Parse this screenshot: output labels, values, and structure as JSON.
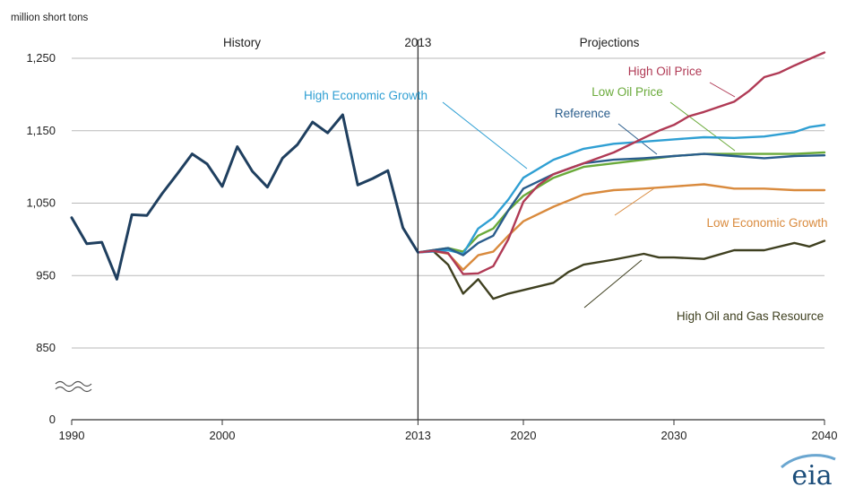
{
  "chart_data": {
    "type": "line",
    "ylabel": "million short tons",
    "yticks": [
      {
        "value": 0,
        "label": "0"
      },
      {
        "value": 850,
        "label": "850"
      },
      {
        "value": 950,
        "label": "950"
      },
      {
        "value": 1050,
        "label": "1,050"
      },
      {
        "value": 1150,
        "label": "1,150"
      },
      {
        "value": 1250,
        "label": "1,250"
      }
    ],
    "xticks": [
      {
        "value": 1990,
        "label": "1990"
      },
      {
        "value": 2000,
        "label": "2000"
      },
      {
        "value": 2013,
        "label": "2013"
      },
      {
        "value": 2020,
        "label": "2020"
      },
      {
        "value": 2030,
        "label": "2030"
      },
      {
        "value": 2040,
        "label": "2040"
      }
    ],
    "axis_break": true,
    "divider_year": 2013,
    "sections": {
      "history": "History",
      "divider": "2013",
      "projections": "Projections"
    },
    "grid": "horizontal",
    "series": [
      {
        "name": "History",
        "color": "#1f3f5f",
        "x": [
          1990,
          1991,
          1992,
          1993,
          1994,
          1995,
          1996,
          1997,
          1998,
          1999,
          2000,
          2001,
          2002,
          2003,
          2004,
          2005,
          2006,
          2007,
          2008,
          2009,
          2010,
          2011,
          2012,
          2013
        ],
        "y": [
          1030,
          994,
          996,
          945,
          1034,
          1033,
          1063,
          1090,
          1118,
          1104,
          1073,
          1128,
          1094,
          1072,
          1112,
          1131,
          1162,
          1147,
          1172,
          1075,
          1084,
          1095,
          1016,
          982
        ]
      },
      {
        "name": "High Oil Price",
        "color": "#b03a55",
        "x": [
          2013,
          2014,
          2015,
          2016,
          2017,
          2018,
          2019,
          2020,
          2021,
          2022,
          2024,
          2026,
          2028,
          2029,
          2030,
          2031,
          2032,
          2034,
          2035,
          2036,
          2037,
          2038,
          2040
        ],
        "y": [
          982,
          984,
          981,
          952,
          953,
          963,
          1000,
          1052,
          1075,
          1090,
          1105,
          1120,
          1140,
          1150,
          1158,
          1170,
          1176,
          1190,
          1205,
          1224,
          1230,
          1240,
          1258
        ]
      },
      {
        "name": "High Economic Growth",
        "color": "#2f9fd3",
        "x": [
          2013,
          2014,
          2015,
          2016,
          2017,
          2018,
          2019,
          2020,
          2022,
          2024,
          2026,
          2028,
          2030,
          2032,
          2034,
          2036,
          2038,
          2039,
          2040
        ],
        "y": [
          982,
          983,
          985,
          980,
          1015,
          1030,
          1055,
          1085,
          1110,
          1125,
          1132,
          1135,
          1138,
          1141,
          1140,
          1142,
          1148,
          1155,
          1158
        ]
      },
      {
        "name": "Low Oil Price",
        "color": "#6aaa3a",
        "x": [
          2013,
          2014,
          2015,
          2016,
          2017,
          2018,
          2019,
          2020,
          2022,
          2024,
          2026,
          2028,
          2030,
          2032,
          2034,
          2036,
          2038,
          2040
        ],
        "y": [
          982,
          985,
          988,
          983,
          1005,
          1015,
          1040,
          1060,
          1085,
          1100,
          1105,
          1110,
          1115,
          1118,
          1118,
          1118,
          1118,
          1120
        ]
      },
      {
        "name": "Reference",
        "color": "#2a5d8c",
        "x": [
          2013,
          2014,
          2015,
          2016,
          2017,
          2018,
          2019,
          2020,
          2022,
          2024,
          2026,
          2028,
          2030,
          2032,
          2034,
          2036,
          2038,
          2040
        ],
        "y": [
          982,
          985,
          988,
          978,
          995,
          1005,
          1040,
          1070,
          1090,
          1105,
          1110,
          1112,
          1115,
          1118,
          1115,
          1112,
          1115,
          1116
        ]
      },
      {
        "name": "Low Economic Growth",
        "color": "#d98a3d",
        "x": [
          2013,
          2014,
          2015,
          2016,
          2017,
          2018,
          2019,
          2020,
          2022,
          2024,
          2026,
          2028,
          2030,
          2032,
          2034,
          2036,
          2038,
          2040
        ],
        "y": [
          982,
          984,
          980,
          958,
          978,
          983,
          1005,
          1025,
          1045,
          1062,
          1068,
          1070,
          1073,
          1076,
          1070,
          1070,
          1068,
          1068
        ]
      },
      {
        "name": "High Oil and Gas Resource",
        "color": "#3f4020",
        "x": [
          2013,
          2014,
          2015,
          2016,
          2017,
          2018,
          2019,
          2020,
          2022,
          2023,
          2024,
          2026,
          2028,
          2029,
          2030,
          2032,
          2034,
          2036,
          2038,
          2039,
          2040
        ],
        "y": [
          982,
          984,
          965,
          925,
          945,
          918,
          925,
          930,
          940,
          955,
          965,
          972,
          980,
          975,
          975,
          973,
          985,
          985,
          995,
          990,
          998
        ]
      }
    ],
    "annotations": [
      {
        "text": "High Oil Price",
        "series": "High Oil Price"
      },
      {
        "text": "Low Oil Price",
        "series": "Low Oil Price"
      },
      {
        "text": "High Economic Growth",
        "series": "High Economic Growth"
      },
      {
        "text": "Reference",
        "series": "Reference"
      },
      {
        "text": "Low Economic Growth",
        "series": "Low Economic Growth"
      },
      {
        "text": "High Oil and Gas Resource",
        "series": "High Oil and Gas Resource"
      }
    ]
  },
  "logo": {
    "text": "eia",
    "color": "#1b4d7a"
  }
}
